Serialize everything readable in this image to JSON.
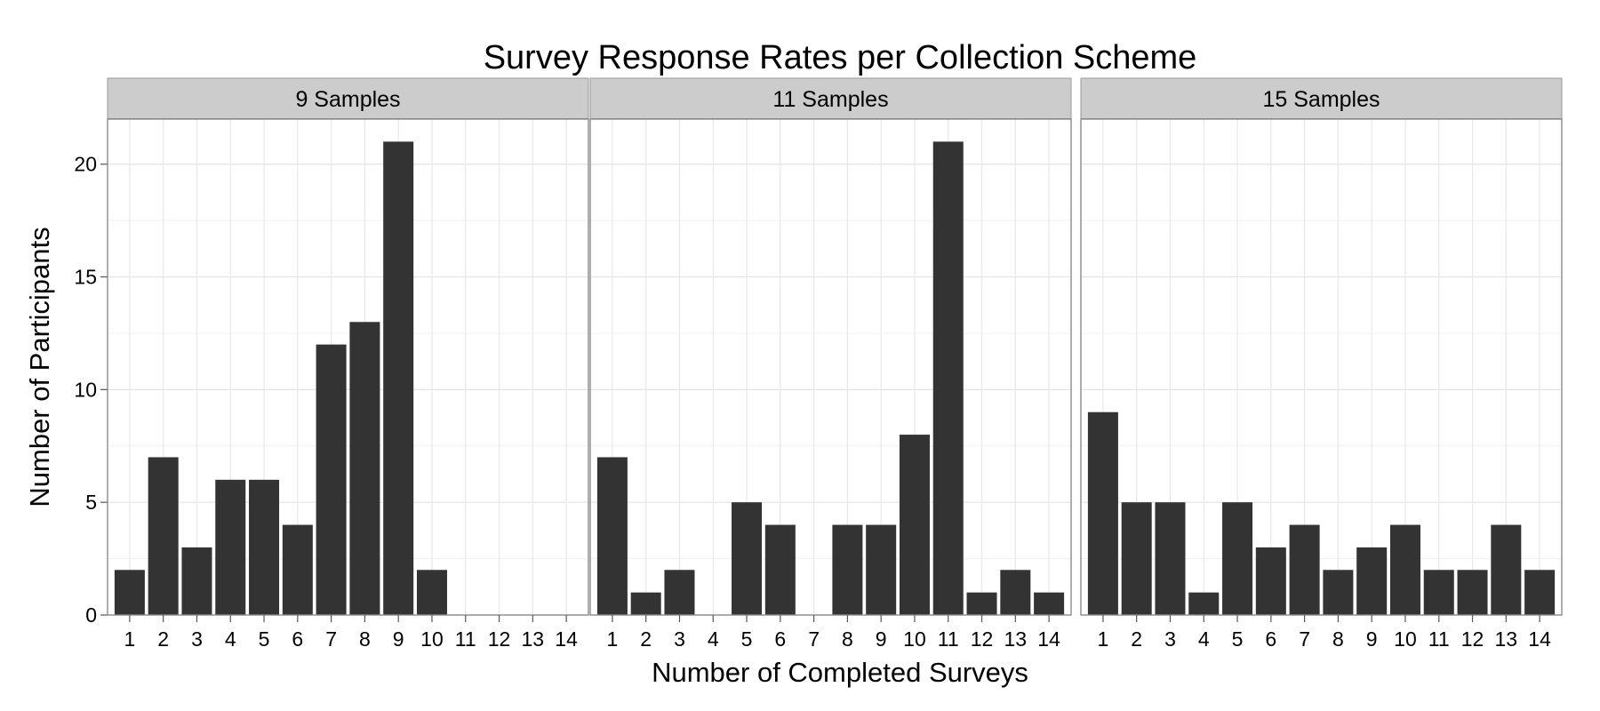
{
  "chart_data": {
    "type": "bar",
    "title": "Survey Response Rates per Collection Scheme",
    "xlabel": "Number of Completed Surveys",
    "ylabel": "Number of Participants",
    "categories": [
      "1",
      "2",
      "3",
      "4",
      "5",
      "6",
      "7",
      "8",
      "9",
      "10",
      "11",
      "12",
      "13",
      "14"
    ],
    "ylim": [
      0,
      22
    ],
    "yticks": [
      0,
      5,
      10,
      15,
      20
    ],
    "grid": true,
    "bar_color": "#333333",
    "panels": [
      {
        "label": "9 Samples",
        "values": [
          2,
          7,
          3,
          6,
          6,
          4,
          12,
          13,
          21,
          2,
          0,
          0,
          0,
          0
        ]
      },
      {
        "label": "11 Samples",
        "values": [
          7,
          1,
          2,
          0,
          5,
          4,
          0,
          4,
          4,
          8,
          21,
          1,
          2,
          1
        ]
      },
      {
        "label": "15 Samples",
        "values": [
          9,
          5,
          5,
          1,
          5,
          3,
          4,
          2,
          3,
          4,
          2,
          2,
          4,
          2
        ]
      }
    ]
  }
}
